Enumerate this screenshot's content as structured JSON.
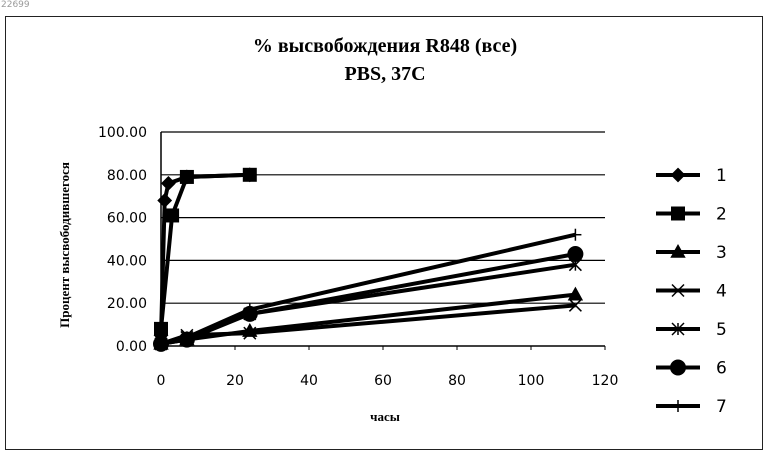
{
  "stamp": "22699",
  "chart_data": {
    "type": "line",
    "title": "% высвобождения R848 (все)",
    "subtitle": "PBS, 37C",
    "xlabel": "часы",
    "ylabel": "Процент высвободившегося",
    "xlim": [
      0,
      120
    ],
    "ylim": [
      0,
      100
    ],
    "x_ticks": [
      "0",
      "20",
      "40",
      "60",
      "80",
      "100",
      "120"
    ],
    "y_ticks": [
      "0.00",
      "20.00",
      "40.00",
      "60.00",
      "80.00",
      "100.00"
    ],
    "grid": "horizontal",
    "legend_position": "right",
    "series": [
      {
        "name": "1",
        "marker": "diamond",
        "points": [
          [
            0,
            5
          ],
          [
            1,
            68
          ],
          [
            2,
            76
          ],
          [
            7,
            79
          ],
          [
            24,
            80
          ]
        ]
      },
      {
        "name": "2",
        "marker": "square",
        "points": [
          [
            0,
            8
          ],
          [
            3,
            61
          ],
          [
            7,
            79
          ],
          [
            24,
            80
          ]
        ]
      },
      {
        "name": "3",
        "marker": "triangle",
        "points": [
          [
            0,
            1
          ],
          [
            7,
            3
          ],
          [
            24,
            7
          ],
          [
            112,
            24
          ]
        ]
      },
      {
        "name": "4",
        "marker": "x",
        "points": [
          [
            0,
            1
          ],
          [
            7,
            5
          ],
          [
            24,
            6
          ],
          [
            112,
            19
          ]
        ]
      },
      {
        "name": "5",
        "marker": "asterisk",
        "points": [
          [
            0,
            1
          ],
          [
            7,
            4
          ],
          [
            24,
            15
          ],
          [
            112,
            38
          ]
        ]
      },
      {
        "name": "6",
        "marker": "circle",
        "points": [
          [
            0,
            1
          ],
          [
            7,
            3
          ],
          [
            24,
            15
          ],
          [
            112,
            43
          ]
        ]
      },
      {
        "name": "7",
        "marker": "plus",
        "points": [
          [
            0,
            1
          ],
          [
            7,
            4
          ],
          [
            24,
            17
          ],
          [
            112,
            52
          ]
        ]
      }
    ]
  }
}
